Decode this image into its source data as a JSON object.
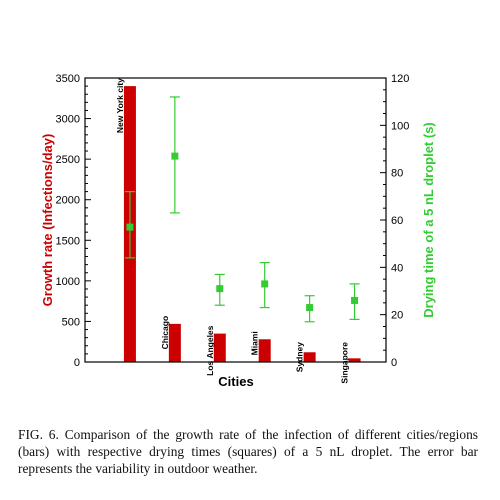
{
  "chart_data": {
    "type": "bar",
    "categories": [
      "New York city",
      "Chicago",
      "Los Angeles",
      "Miami",
      "Sydney",
      "Singapore"
    ],
    "xlabel": "Cities",
    "series": [
      {
        "name": "Growth rate",
        "kind": "bar",
        "axis": "left",
        "color": "#cc0000",
        "values": [
          3400,
          470,
          350,
          280,
          120,
          45
        ]
      },
      {
        "name": "Drying time",
        "kind": "point",
        "axis": "right",
        "color": "#33cc33",
        "values": [
          57,
          87,
          31,
          33,
          23,
          26
        ],
        "error_low": [
          44,
          63,
          24,
          23,
          17,
          18
        ],
        "error_high": [
          72,
          112,
          37,
          42,
          28,
          33
        ]
      }
    ],
    "left_axis": {
      "label": "Growth rate (Infections/day)",
      "color": "#cc0000",
      "range": [
        0,
        3500
      ],
      "ticks": [
        "0",
        "500",
        "1000",
        "1500",
        "2000",
        "2500",
        "3000",
        "3500"
      ]
    },
    "right_axis": {
      "label": "Drying time of a 5 nL droplet (s)",
      "color": "#33cc33",
      "range": [
        0,
        120
      ],
      "ticks": [
        "0",
        "20",
        "40",
        "60",
        "80",
        "100",
        "120"
      ]
    },
    "grid": false
  },
  "caption": "FIG. 6. Comparison of the growth rate of the infection of different cities/regions (bars) with respective drying times (squares) of a 5 nL droplet. The error bar represents the variability in outdoor weather."
}
